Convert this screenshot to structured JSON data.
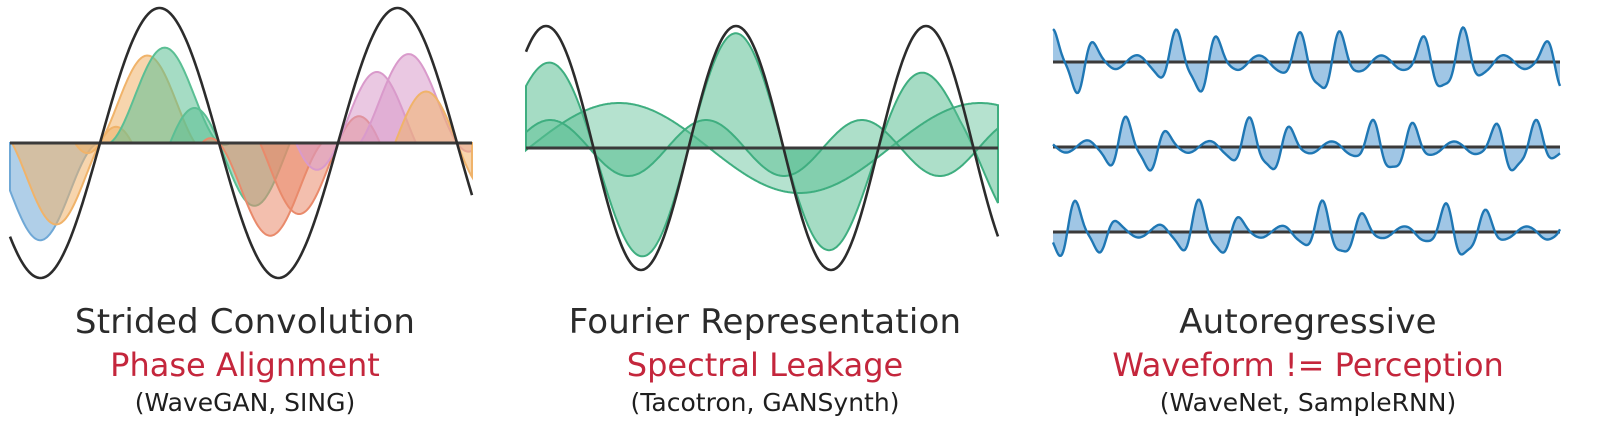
{
  "panels": [
    {
      "title": "Strided Convolution",
      "issue": "Phase Alignment",
      "models": "(WaveGAN, SING)",
      "icon": "overlapping-kernels-waveform"
    },
    {
      "title": "Fourier Representation",
      "issue": "Spectral Leakage",
      "models": "(Tacotron, GANSynth)",
      "icon": "spectral-basis-waveform"
    },
    {
      "title": "Autoregressive",
      "issue": "Waveform != Perception",
      "models": "(WaveNet, SampleRNN)",
      "icon": "stacked-waveforms"
    }
  ],
  "colors": {
    "issue_red": "#c4263c",
    "blue": "#6fa8d6",
    "orange": "#f0b36a",
    "green": "#5bbf94",
    "salmon": "#e98a6b",
    "pink": "#d99acb",
    "waveform_blue": "#1f77b4",
    "waveform_fill": "#8fbce0"
  }
}
